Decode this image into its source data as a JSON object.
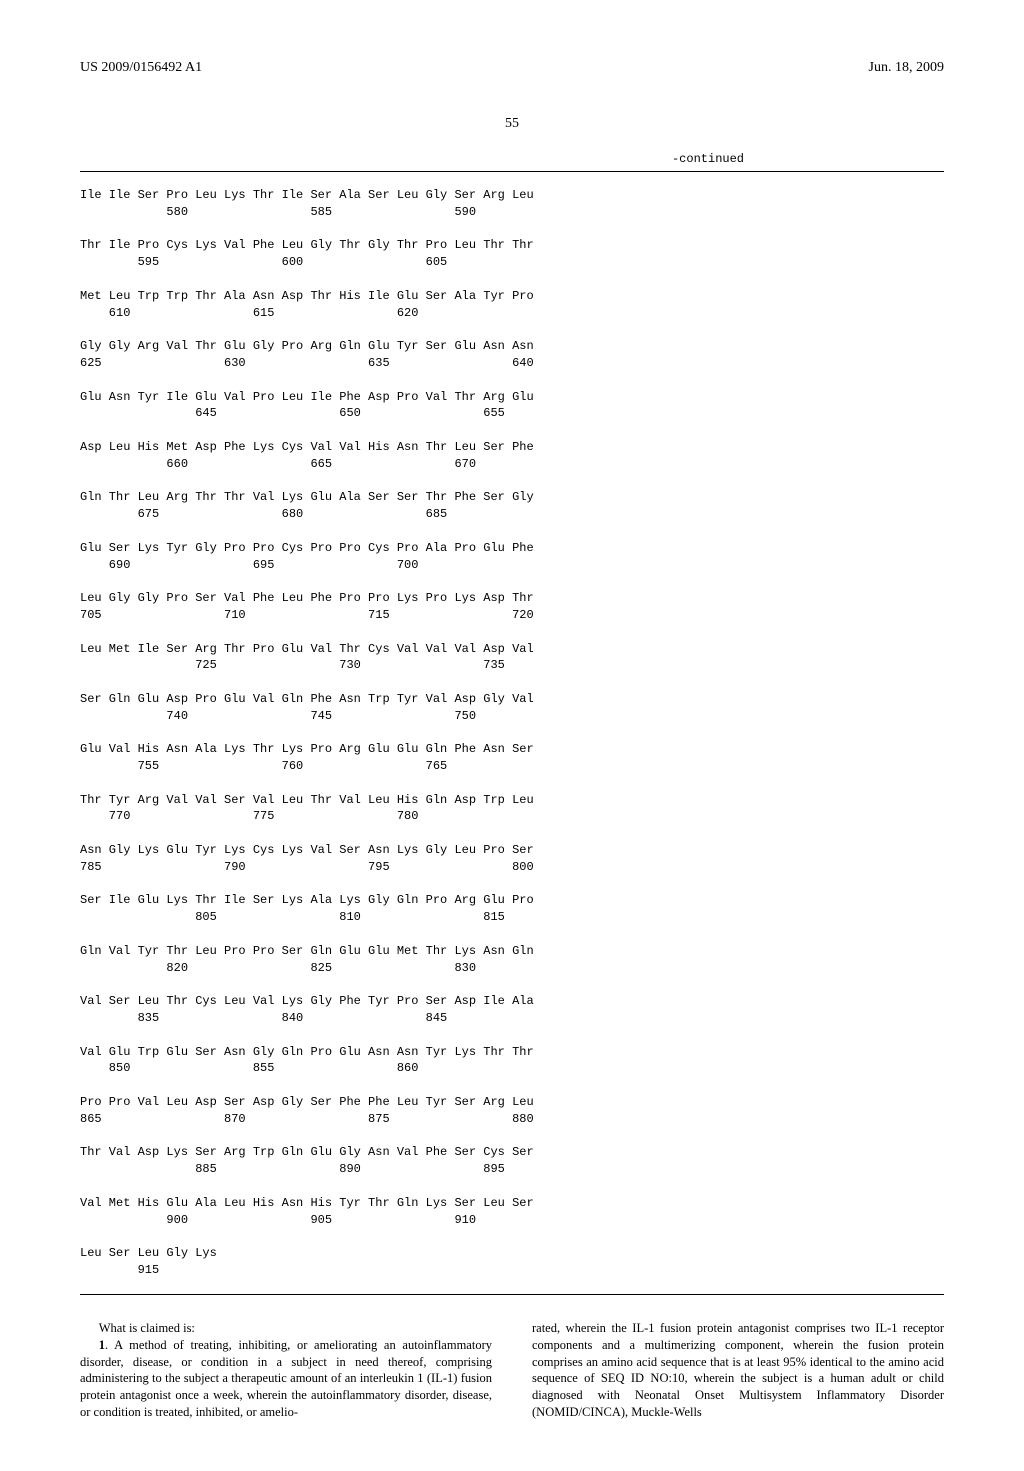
{
  "header": {
    "publication_number": "US 2009/0156492 A1",
    "publication_date": "Jun. 18, 2009",
    "page_number": "55",
    "continued_label": "-continued"
  },
  "sequence_rows": [
    {
      "aa": "Ile Ile Ser Pro Leu Lys Thr Ile Ser Ala Ser Leu Gly Ser Arg Leu",
      "nums": "            580                 585                 590"
    },
    {
      "aa": "Thr Ile Pro Cys Lys Val Phe Leu Gly Thr Gly Thr Pro Leu Thr Thr",
      "nums": "        595                 600                 605"
    },
    {
      "aa": "Met Leu Trp Trp Thr Ala Asn Asp Thr His Ile Glu Ser Ala Tyr Pro",
      "nums": "    610                 615                 620"
    },
    {
      "aa": "Gly Gly Arg Val Thr Glu Gly Pro Arg Gln Glu Tyr Ser Glu Asn Asn",
      "nums": "625                 630                 635                 640"
    },
    {
      "aa": "Glu Asn Tyr Ile Glu Val Pro Leu Ile Phe Asp Pro Val Thr Arg Glu",
      "nums": "                645                 650                 655"
    },
    {
      "aa": "Asp Leu His Met Asp Phe Lys Cys Val Val His Asn Thr Leu Ser Phe",
      "nums": "            660                 665                 670"
    },
    {
      "aa": "Gln Thr Leu Arg Thr Thr Val Lys Glu Ala Ser Ser Thr Phe Ser Gly",
      "nums": "        675                 680                 685"
    },
    {
      "aa": "Glu Ser Lys Tyr Gly Pro Pro Cys Pro Pro Cys Pro Ala Pro Glu Phe",
      "nums": "    690                 695                 700"
    },
    {
      "aa": "Leu Gly Gly Pro Ser Val Phe Leu Phe Pro Pro Lys Pro Lys Asp Thr",
      "nums": "705                 710                 715                 720"
    },
    {
      "aa": "Leu Met Ile Ser Arg Thr Pro Glu Val Thr Cys Val Val Val Asp Val",
      "nums": "                725                 730                 735"
    },
    {
      "aa": "Ser Gln Glu Asp Pro Glu Val Gln Phe Asn Trp Tyr Val Asp Gly Val",
      "nums": "            740                 745                 750"
    },
    {
      "aa": "Glu Val His Asn Ala Lys Thr Lys Pro Arg Glu Glu Gln Phe Asn Ser",
      "nums": "        755                 760                 765"
    },
    {
      "aa": "Thr Tyr Arg Val Val Ser Val Leu Thr Val Leu His Gln Asp Trp Leu",
      "nums": "    770                 775                 780"
    },
    {
      "aa": "Asn Gly Lys Glu Tyr Lys Cys Lys Val Ser Asn Lys Gly Leu Pro Ser",
      "nums": "785                 790                 795                 800"
    },
    {
      "aa": "Ser Ile Glu Lys Thr Ile Ser Lys Ala Lys Gly Gln Pro Arg Glu Pro",
      "nums": "                805                 810                 815"
    },
    {
      "aa": "Gln Val Tyr Thr Leu Pro Pro Ser Gln Glu Glu Met Thr Lys Asn Gln",
      "nums": "            820                 825                 830"
    },
    {
      "aa": "Val Ser Leu Thr Cys Leu Val Lys Gly Phe Tyr Pro Ser Asp Ile Ala",
      "nums": "        835                 840                 845"
    },
    {
      "aa": "Val Glu Trp Glu Ser Asn Gly Gln Pro Glu Asn Asn Tyr Lys Thr Thr",
      "nums": "    850                 855                 860"
    },
    {
      "aa": "Pro Pro Val Leu Asp Ser Asp Gly Ser Phe Phe Leu Tyr Ser Arg Leu",
      "nums": "865                 870                 875                 880"
    },
    {
      "aa": "Thr Val Asp Lys Ser Arg Trp Gln Glu Gly Asn Val Phe Ser Cys Ser",
      "nums": "                885                 890                 895"
    },
    {
      "aa": "Val Met His Glu Ala Leu His Asn His Tyr Thr Gln Lys Ser Leu Ser",
      "nums": "            900                 905                 910"
    },
    {
      "aa": "Leu Ser Leu Gly Lys",
      "nums": "        915"
    }
  ],
  "claims": {
    "lead_text": "What is claimed is:",
    "claim_number": "1",
    "col1_text": ". A method of treating, inhibiting, or ameliorating an autoinflammatory disorder, disease, or condition in a subject in need thereof, comprising administering to the subject a therapeutic amount of an interleukin 1 (IL-1) fusion protein antagonist once a week, wherein the autoinflammatory disorder, disease, or condition is treated, inhibited, or amelio-",
    "col2_text": "rated, wherein the IL-1 fusion protein antagonist comprises two IL-1 receptor components and a multimerizing component, wherein the fusion protein comprises an amino acid sequence that is at least 95% identical to the amino acid sequence of SEQ ID NO:10, wherein the subject is a human adult or child diagnosed with Neonatal Onset Multisystem Inflammatory Disorder (NOMID/CINCA), Muckle-Wells"
  }
}
